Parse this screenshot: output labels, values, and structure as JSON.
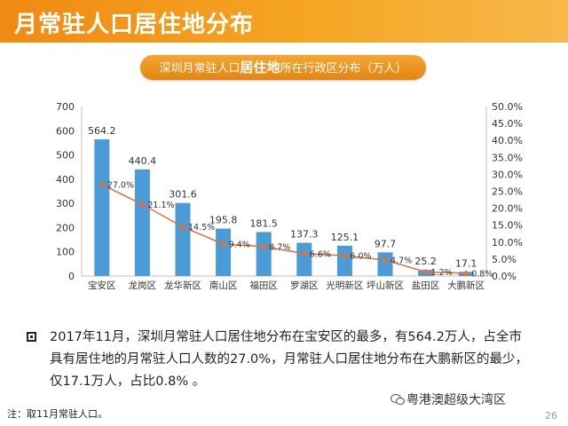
{
  "header": {
    "title": "月常驻人口居住地分布"
  },
  "subtitle": {
    "prefix": "深圳月常驻人口",
    "bold": "居住地",
    "suffix": "所在行政区分布（万人）"
  },
  "summary": {
    "text": "2017年11月，深圳月常驻人口居住地分布在宝安区的最多，有564.2万人，占全市具有居住地的月常驻人口人数的27.0%，月常驻人口居住地分布在大鹏新区的最少，仅17.1万人，占比0.8% 。"
  },
  "footnote": "注：取11月常驻人口。",
  "watermark": "粤港澳超级大湾区",
  "page_number": "26",
  "colors": {
    "bar": "#4a9bd6",
    "line": "#e2703a",
    "banner": "#f08a12"
  },
  "chart_data": {
    "type": "bar",
    "categories": [
      "宝安区",
      "龙岗区",
      "龙华新区",
      "南山区",
      "福田区",
      "罗湖区",
      "光明新区",
      "坪山新区",
      "盐田区",
      "大鹏新区"
    ],
    "series": [
      {
        "values": [
          564.2,
          440.4,
          301.6,
          195.8,
          181.5,
          137.3,
          125.1,
          97.7,
          25.2,
          17.1
        ],
        "axis": "left"
      },
      {
        "type": "line",
        "values": [
          27.0,
          21.1,
          14.5,
          9.4,
          8.7,
          6.6,
          6.0,
          4.7,
          1.2,
          0.8
        ],
        "axis": "right"
      }
    ],
    "bar_labels": [
      "564.2",
      "440.4",
      "301.6",
      "195.8",
      "181.5",
      "137.3",
      "125.1",
      "97.7",
      "25.2",
      "17.1"
    ],
    "line_labels": [
      "27.0%",
      "21.1%",
      "14.5%",
      "9.4%",
      "8.7%",
      "6.6%",
      "6.0%",
      "4.7%",
      "1.2%",
      "0.8%"
    ],
    "ylim_left": [
      0,
      700
    ],
    "yticks_left": [
      "0",
      "100",
      "200",
      "300",
      "400",
      "500",
      "600",
      "700"
    ],
    "ylim_right": [
      0,
      50
    ],
    "yticks_right": [
      "0.0%",
      "5.0%",
      "10.0%",
      "15.0%",
      "20.0%",
      "25.0%",
      "30.0%",
      "35.0%",
      "40.0%",
      "45.0%",
      "50.0%"
    ],
    "grid": false,
    "legend": "none"
  }
}
